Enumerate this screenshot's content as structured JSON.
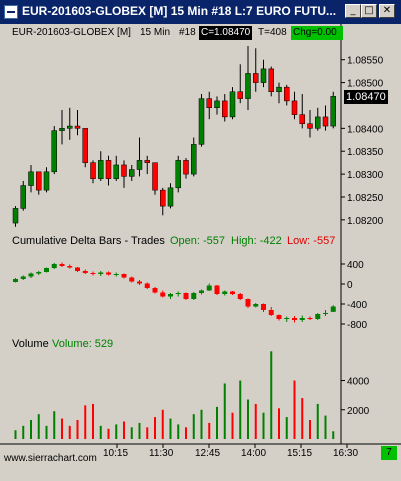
{
  "window": {
    "title": "EUR-201603-GLOBEX [M]  15 Min   #18  L:7  EURO FUTU...",
    "minimize_label": "_",
    "maximize_label": "□",
    "close_label": "✕"
  },
  "header": {
    "symbol": "EUR-201603-GLOBEX [M]",
    "interval": "15 Min",
    "bar_number": "#18",
    "close_label": "C=1.08470",
    "trades_label": "T=408",
    "change_label": "Chg=0.00"
  },
  "price_panel": {
    "current_price_label": "1.08470",
    "ticks": [
      "1.08550",
      "1.08500",
      "1.08400",
      "1.08350",
      "1.08300",
      "1.08250",
      "1.08200"
    ]
  },
  "delta_panel": {
    "title": "Cumulative Delta Bars - Trades",
    "open_label": "Open: -557",
    "high_label": "High: -422",
    "low_label": "Low: -557",
    "ticks": [
      "400",
      "0",
      "-400",
      "-800"
    ]
  },
  "volume_panel": {
    "title": "Volume",
    "value_label": "Volume: 529",
    "ticks": [
      "4000",
      "2000"
    ]
  },
  "time_axis": {
    "labels": [
      "10:15",
      "11:30",
      "12:45",
      "14:00",
      "15:15",
      "16:30"
    ]
  },
  "status_bar": {
    "website": "www.sierrachart.com",
    "badge": "7"
  },
  "chart_data": [
    {
      "type": "candlestick",
      "name": "price",
      "ylim": [
        1.0818,
        1.0858
      ],
      "bars": [
        [
          1.08193,
          1.0823,
          1.08185,
          1.08225
        ],
        [
          1.08225,
          1.08285,
          1.0822,
          1.08275
        ],
        [
          1.08275,
          1.0832,
          1.0826,
          1.08305
        ],
        [
          1.08305,
          1.083,
          1.08255,
          1.08265
        ],
        [
          1.08265,
          1.08315,
          1.0826,
          1.08305
        ],
        [
          1.08305,
          1.08405,
          1.083,
          1.08395
        ],
        [
          1.08395,
          1.0844,
          1.08365,
          1.084
        ],
        [
          1.084,
          1.08445,
          1.08375,
          1.08405
        ],
        [
          1.08405,
          1.0844,
          1.08385,
          1.084
        ],
        [
          1.084,
          1.08395,
          1.08315,
          1.08325
        ],
        [
          1.08325,
          1.0833,
          1.0828,
          1.0829
        ],
        [
          1.0829,
          1.0835,
          1.08285,
          1.0833
        ],
        [
          1.0833,
          1.0834,
          1.08275,
          1.0829
        ],
        [
          1.0829,
          1.0834,
          1.08285,
          1.0832
        ],
        [
          1.0832,
          1.0833,
          1.0827,
          1.08295
        ],
        [
          1.08295,
          1.0832,
          1.08285,
          1.0831
        ],
        [
          1.0831,
          1.0838,
          1.08295,
          1.0833
        ],
        [
          1.0833,
          1.0834,
          1.083,
          1.08325
        ],
        [
          1.08325,
          1.0832,
          1.08255,
          1.08265
        ],
        [
          1.08265,
          1.0827,
          1.0821,
          1.0823
        ],
        [
          1.0823,
          1.0828,
          1.08225,
          1.0827
        ],
        [
          1.0827,
          1.0834,
          1.0826,
          1.0833
        ],
        [
          1.0833,
          1.08335,
          1.0829,
          1.083
        ],
        [
          1.083,
          1.0838,
          1.08295,
          1.08365
        ],
        [
          1.08365,
          1.08475,
          1.0836,
          1.08465
        ],
        [
          1.08465,
          1.0848,
          1.0842,
          1.08445
        ],
        [
          1.08445,
          1.0847,
          1.0843,
          1.0846
        ],
        [
          1.0846,
          1.08475,
          1.08415,
          1.08425
        ],
        [
          1.08425,
          1.0849,
          1.0842,
          1.0848
        ],
        [
          1.0848,
          1.0854,
          1.08455,
          1.08465
        ],
        [
          1.08465,
          1.0858,
          1.0844,
          1.0852
        ],
        [
          1.0852,
          1.08575,
          1.0848,
          1.085
        ],
        [
          1.085,
          1.0855,
          1.0849,
          1.0853
        ],
        [
          1.0853,
          1.08535,
          1.0847,
          1.0848
        ],
        [
          1.0848,
          1.085,
          1.08455,
          1.0849
        ],
        [
          1.0849,
          1.08495,
          1.0845,
          1.0846
        ],
        [
          1.0846,
          1.0848,
          1.0842,
          1.0843
        ],
        [
          1.0843,
          1.08475,
          1.084,
          1.0841
        ],
        [
          1.0841,
          1.0844,
          1.0838,
          1.084
        ],
        [
          1.084,
          1.08445,
          1.08395,
          1.08425
        ],
        [
          1.08425,
          1.0845,
          1.08395,
          1.08405
        ],
        [
          1.08405,
          1.0848,
          1.084,
          1.0847
        ]
      ]
    },
    {
      "type": "candlestick",
      "name": "cumulative delta",
      "ylim": [
        -1000,
        600
      ],
      "bars": [
        [
          40,
          120,
          30,
          100
        ],
        [
          100,
          170,
          80,
          150
        ],
        [
          150,
          230,
          120,
          210
        ],
        [
          210,
          260,
          180,
          240
        ],
        [
          240,
          330,
          230,
          320
        ],
        [
          320,
          420,
          300,
          400
        ],
        [
          400,
          430,
          340,
          360
        ],
        [
          360,
          390,
          310,
          330
        ],
        [
          330,
          340,
          240,
          260
        ],
        [
          260,
          290,
          200,
          220
        ],
        [
          220,
          250,
          170,
          200
        ],
        [
          200,
          260,
          160,
          230
        ],
        [
          230,
          250,
          170,
          190
        ],
        [
          190,
          230,
          150,
          200
        ],
        [
          200,
          210,
          110,
          130
        ],
        [
          130,
          150,
          30,
          50
        ],
        [
          50,
          80,
          -20,
          10
        ],
        [
          10,
          30,
          -100,
          -80
        ],
        [
          -80,
          -60,
          -190,
          -170
        ],
        [
          -170,
          -130,
          -270,
          -250
        ],
        [
          -250,
          -180,
          -300,
          -200
        ],
        [
          -200,
          -150,
          -250,
          -180
        ],
        [
          -180,
          -170,
          -320,
          -300
        ],
        [
          -300,
          -160,
          -320,
          -180
        ],
        [
          -180,
          -110,
          -210,
          -130
        ],
        [
          -130,
          10,
          -140,
          -30
        ],
        [
          -30,
          -20,
          -220,
          -200
        ],
        [
          -200,
          -130,
          -230,
          -150
        ],
        [
          -150,
          -140,
          -220,
          -200
        ],
        [
          -200,
          -180,
          -320,
          -300
        ],
        [
          -300,
          -290,
          -480,
          -450
        ],
        [
          -450,
          -380,
          -470,
          -400
        ],
        [
          -400,
          -390,
          -560,
          -520
        ],
        [
          -520,
          -460,
          -640,
          -620
        ],
        [
          -620,
          -610,
          -730,
          -700
        ],
        [
          -700,
          -650,
          -760,
          -680
        ],
        [
          -680,
          -640,
          -770,
          -720
        ],
        [
          -720,
          -630,
          -760,
          -680
        ],
        [
          -680,
          -650,
          -720,
          -700
        ],
        [
          -700,
          -580,
          -720,
          -600
        ],
        [
          -600,
          -520,
          -640,
          -580
        ],
        [
          -557,
          -422,
          -557,
          -450
        ]
      ]
    },
    {
      "type": "bar",
      "name": "volume",
      "ylim": [
        0,
        6500
      ],
      "values": [
        600,
        900,
        1300,
        1700,
        900,
        1900,
        1400,
        900,
        1300,
        2300,
        2400,
        900,
        700,
        1000,
        1200,
        800,
        1100,
        800,
        1500,
        2000,
        1400,
        1000,
        800,
        1700,
        2000,
        1100,
        2200,
        3800,
        1800,
        4000,
        2700,
        2400,
        1800,
        6000,
        2100,
        1500,
        4000,
        2800,
        1300,
        2400,
        1600,
        529
      ],
      "directions": [
        "up",
        "up",
        "up",
        "up",
        "up",
        "up",
        "down",
        "down",
        "down",
        "down",
        "down",
        "up",
        "down",
        "up",
        "down",
        "up",
        "up",
        "down",
        "down",
        "down",
        "up",
        "up",
        "down",
        "up",
        "up",
        "down",
        "up",
        "up",
        "down",
        "up",
        "up",
        "down",
        "up",
        "up",
        "down",
        "up",
        "down",
        "down",
        "down",
        "up",
        "up",
        "up"
      ]
    }
  ]
}
